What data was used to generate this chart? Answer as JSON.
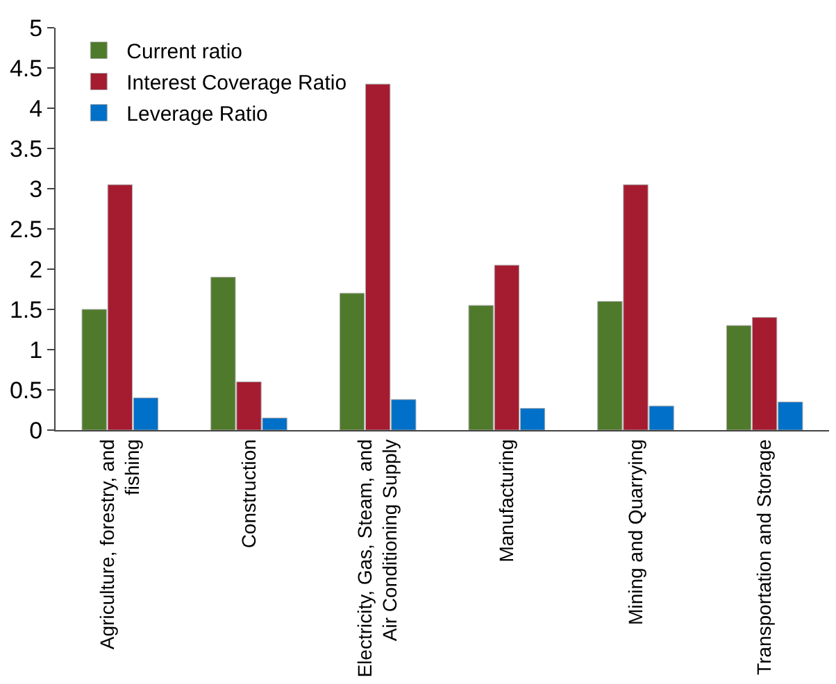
{
  "chart_data": {
    "type": "bar",
    "categories": [
      "Agriculture, forestry, and fishing",
      "Construction",
      "Electricity, Gas, Steam, and Air Conditioning Supply",
      "Manufacturing",
      "Mining and Quarrying",
      "Transportation and Storage"
    ],
    "series": [
      {
        "name": "Current ratio",
        "color": "#507a2b",
        "values": [
          1.5,
          1.9,
          1.7,
          1.55,
          1.6,
          1.3
        ]
      },
      {
        "name": "Interest Coverage Ratio",
        "color": "#a51c30",
        "values": [
          3.05,
          0.6,
          4.3,
          2.05,
          3.05,
          1.4
        ]
      },
      {
        "name": "Leverage Ratio",
        "color": "#0070c8",
        "values": [
          0.4,
          0.15,
          0.38,
          0.27,
          0.3,
          0.35
        ]
      }
    ],
    "ylim": [
      0,
      5
    ],
    "yticks": [
      0,
      0.5,
      1,
      1.5,
      2,
      2.5,
      3,
      3.5,
      4,
      4.5,
      5
    ],
    "legend": "top left"
  }
}
